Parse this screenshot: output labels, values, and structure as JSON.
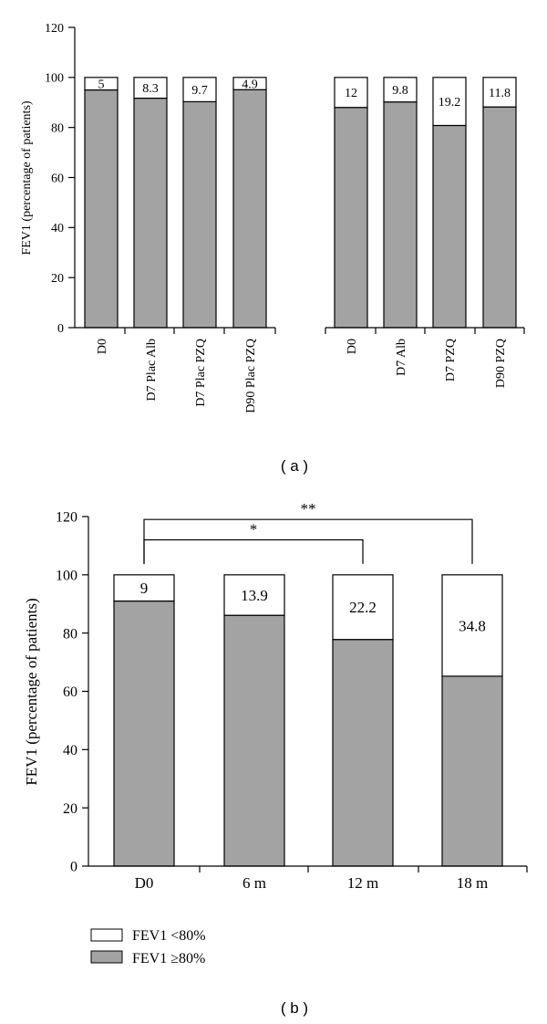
{
  "colors": {
    "fev_ge80": "#a3a3a3",
    "fev_lt80": "#ffffff",
    "stroke": "#000000"
  },
  "chart_data": [
    {
      "type": "bar",
      "stacked": true,
      "panel_label": "( a )",
      "ylabel": "FEV1 (percentage of patients)",
      "ylim": [
        0,
        120
      ],
      "yticks": [
        "0",
        "20",
        "40",
        "60",
        "80",
        "100",
        "120"
      ],
      "groups": [
        [
          "D0",
          "D7 Plac Alb",
          "D7 Plac PZQ",
          "D90 Plac PZQ"
        ],
        [
          "D0",
          "D7 Alb",
          "D7 PZQ",
          "D90 PZQ"
        ]
      ],
      "categories": [
        "D0",
        "D7 Plac Alb",
        "D7 Plac PZQ",
        "D90 Plac PZQ",
        "D0",
        "D7 Alb",
        "D7 PZQ",
        "D90 PZQ"
      ],
      "series": [
        {
          "name": "FEV1 ≥80%",
          "values": [
            95,
            91.7,
            90.3,
            95.1,
            88,
            90.2,
            80.8,
            88.2
          ]
        },
        {
          "name": "FEV1 <80%",
          "values": [
            5,
            8.3,
            9.7,
            4.9,
            12,
            9.8,
            19.2,
            11.8
          ]
        }
      ],
      "data_labels": [
        "5",
        "8.3",
        "9.7",
        "4.9",
        "12",
        "9.8",
        "19.2",
        "11.8"
      ],
      "grid": false
    },
    {
      "type": "bar",
      "stacked": true,
      "panel_label": "( b )",
      "ylabel": "FEV1 (percentage of patients)",
      "ylim": [
        0,
        120
      ],
      "yticks": [
        "0",
        "20",
        "40",
        "60",
        "80",
        "100",
        "120"
      ],
      "categories": [
        "D0",
        "6 m",
        "12 m",
        "18 m"
      ],
      "series": [
        {
          "name": "FEV1 ≥80%",
          "values": [
            91,
            86.1,
            77.8,
            65.2
          ]
        },
        {
          "name": "FEV1 <80%",
          "values": [
            9,
            13.9,
            22.2,
            34.8
          ]
        }
      ],
      "data_labels": [
        "9",
        "13.9",
        "22.2",
        "34.8"
      ],
      "significance": [
        {
          "from": "D0",
          "to": "12 m",
          "label": "*",
          "y": 112
        },
        {
          "from": "D0",
          "to": "18 m",
          "label": "**",
          "y": 119
        }
      ],
      "legend": {
        "placement": "bottom-left",
        "items": [
          {
            "label": "FEV1 <80%",
            "swatch": "fev_lt80"
          },
          {
            "label": "FEV1 ≥80%",
            "swatch": "fev_ge80"
          }
        ]
      },
      "grid": false
    }
  ]
}
